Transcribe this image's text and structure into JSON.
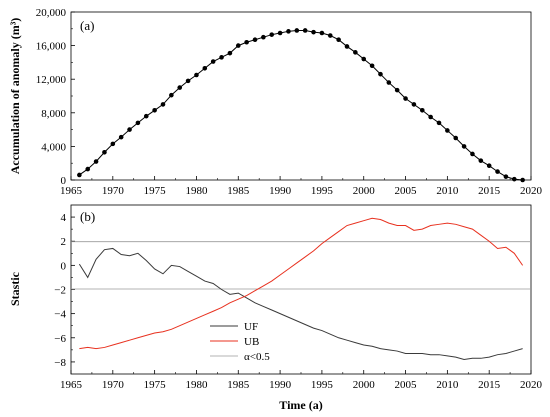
{
  "chart_data": [
    {
      "type": "line",
      "panel_label": "(a)",
      "title": "",
      "xlabel": "",
      "ylabel": "Accumulation of anomaly (m³)",
      "xlim": [
        1965,
        2020
      ],
      "ylim": [
        0,
        20000
      ],
      "xticks": [
        1965,
        1970,
        1975,
        1980,
        1985,
        1990,
        1995,
        2000,
        2005,
        2010,
        2015,
        2020
      ],
      "xtick_labels": [
        "1965",
        "1970",
        "1975",
        "1980",
        "1985",
        "1990",
        "1995",
        "2000",
        "2005",
        "2010",
        "2015",
        "2020"
      ],
      "yticks": [
        0,
        4000,
        8000,
        12000,
        16000,
        20000
      ],
      "ytick_labels": [
        "0",
        "4,000",
        "8,000",
        "12,000",
        "16,000",
        "20,000"
      ],
      "grid": false,
      "marker": "filled-circle",
      "color": "#000000",
      "x": [
        1966,
        1967,
        1968,
        1969,
        1970,
        1971,
        1972,
        1973,
        1974,
        1975,
        1976,
        1977,
        1978,
        1979,
        1980,
        1981,
        1982,
        1983,
        1984,
        1985,
        1986,
        1987,
        1988,
        1989,
        1990,
        1991,
        1992,
        1993,
        1994,
        1995,
        1996,
        1997,
        1998,
        1999,
        2000,
        2001,
        2002,
        2003,
        2004,
        2005,
        2006,
        2007,
        2008,
        2009,
        2010,
        2011,
        2012,
        2013,
        2014,
        2015,
        2016,
        2017,
        2018,
        2019
      ],
      "y": [
        600,
        1300,
        2200,
        3300,
        4300,
        5100,
        6000,
        6800,
        7600,
        8300,
        9000,
        10100,
        11000,
        11800,
        12500,
        13300,
        14100,
        14600,
        15100,
        16000,
        16400,
        16700,
        17000,
        17300,
        17500,
        17700,
        17800,
        17800,
        17600,
        17500,
        17200,
        16700,
        15900,
        15200,
        14400,
        13600,
        12600,
        11600,
        10700,
        9700,
        9000,
        8300,
        7500,
        6800,
        5900,
        5000,
        4000,
        3100,
        2300,
        1700,
        1000,
        400,
        100,
        0
      ]
    },
    {
      "type": "line",
      "panel_label": "(b)",
      "title": "",
      "xlabel": "Time (a)",
      "ylabel": "Stastic",
      "xlim": [
        1965,
        2020
      ],
      "ylim": [
        -9,
        5
      ],
      "xticks": [
        1965,
        1970,
        1975,
        1980,
        1985,
        1990,
        1995,
        2000,
        2005,
        2010,
        2015,
        2020
      ],
      "xtick_labels": [
        "1965",
        "1970",
        "1975",
        "1980",
        "1985",
        "1990",
        "1995",
        "2000",
        "2005",
        "2010",
        "2015",
        "2020"
      ],
      "yticks": [
        -8,
        -6,
        -4,
        -2,
        0,
        2,
        4
      ],
      "ytick_labels": [
        "−8",
        "−6",
        "−4",
        "−2",
        "0",
        "2",
        "4"
      ],
      "grid": false,
      "legend_position": "bottom-center",
      "reference_lines": [
        1.96,
        -1.96
      ],
      "series": [
        {
          "name": "UF",
          "color": "#3a3a3a",
          "x": [
            1966,
            1967,
            1968,
            1969,
            1970,
            1971,
            1972,
            1973,
            1974,
            1975,
            1976,
            1977,
            1978,
            1979,
            1980,
            1981,
            1982,
            1983,
            1984,
            1985,
            1986,
            1987,
            1988,
            1989,
            1990,
            1991,
            1992,
            1993,
            1994,
            1995,
            1996,
            1997,
            1998,
            1999,
            2000,
            2001,
            2002,
            2003,
            2004,
            2005,
            2006,
            2007,
            2008,
            2009,
            2010,
            2011,
            2012,
            2013,
            2014,
            2015,
            2016,
            2017,
            2018,
            2019
          ],
          "y": [
            0.1,
            -1.0,
            0.5,
            1.3,
            1.4,
            0.9,
            0.8,
            1.0,
            0.4,
            -0.3,
            -0.7,
            0.0,
            -0.1,
            -0.5,
            -0.9,
            -1.3,
            -1.5,
            -2.0,
            -2.4,
            -2.3,
            -2.7,
            -3.1,
            -3.4,
            -3.7,
            -4.0,
            -4.3,
            -4.6,
            -4.9,
            -5.2,
            -5.4,
            -5.7,
            -6.0,
            -6.2,
            -6.4,
            -6.6,
            -6.7,
            -6.9,
            -7.0,
            -7.1,
            -7.3,
            -7.3,
            -7.3,
            -7.4,
            -7.4,
            -7.5,
            -7.6,
            -7.8,
            -7.7,
            -7.7,
            -7.6,
            -7.4,
            -7.3,
            -7.1,
            -6.9
          ]
        },
        {
          "name": "UB",
          "color": "#e8311f",
          "x": [
            1966,
            1967,
            1968,
            1969,
            1970,
            1971,
            1972,
            1973,
            1974,
            1975,
            1976,
            1977,
            1978,
            1979,
            1980,
            1981,
            1982,
            1983,
            1984,
            1985,
            1986,
            1987,
            1988,
            1989,
            1990,
            1991,
            1992,
            1993,
            1994,
            1995,
            1996,
            1997,
            1998,
            1999,
            2000,
            2001,
            2002,
            2003,
            2004,
            2005,
            2006,
            2007,
            2008,
            2009,
            2010,
            2011,
            2012,
            2013,
            2014,
            2015,
            2016,
            2017,
            2018,
            2019
          ],
          "y": [
            -6.9,
            -6.8,
            -6.9,
            -6.8,
            -6.6,
            -6.4,
            -6.2,
            -6.0,
            -5.8,
            -5.6,
            -5.5,
            -5.3,
            -5.0,
            -4.7,
            -4.4,
            -4.1,
            -3.8,
            -3.5,
            -3.1,
            -2.8,
            -2.5,
            -2.1,
            -1.7,
            -1.3,
            -0.8,
            -0.3,
            0.2,
            0.7,
            1.2,
            1.8,
            2.3,
            2.8,
            3.3,
            3.5,
            3.7,
            3.9,
            3.8,
            3.5,
            3.3,
            3.3,
            2.9,
            3.0,
            3.3,
            3.4,
            3.5,
            3.4,
            3.2,
            3.0,
            2.5,
            2.0,
            1.4,
            1.5,
            1.0,
            0.0
          ]
        },
        {
          "name": "α<0.5",
          "color": "#9a9a9a",
          "reference": true
        }
      ]
    }
  ]
}
